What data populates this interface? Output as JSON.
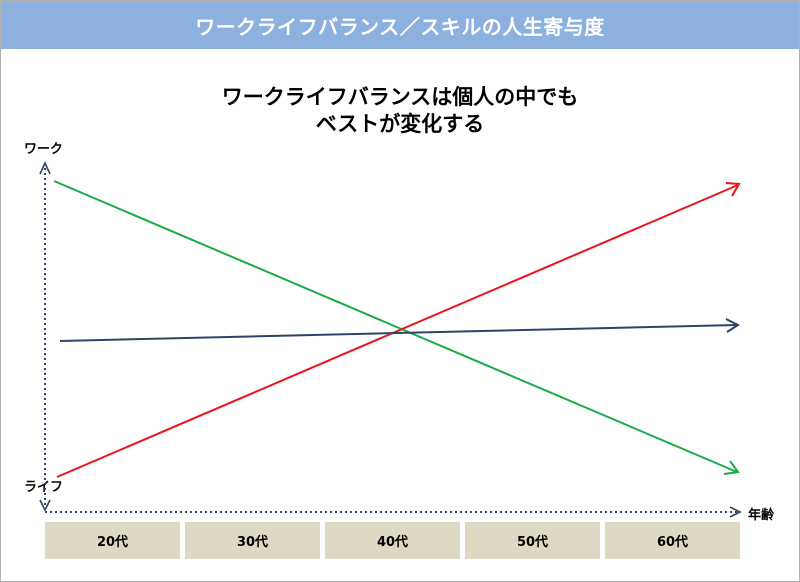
{
  "header": {
    "title": "ワークライフバランス／スキルの人生寄与度"
  },
  "diagram": {
    "title_line1": "ワークライフバランスは個人の中でも",
    "title_line2": "ベストが変化する",
    "y_axis_top_label": "ワーク",
    "y_axis_bottom_label": "ライフ",
    "x_axis_label": "年齢",
    "age_bands": [
      "20代",
      "30代",
      "40代",
      "50代",
      "60代"
    ],
    "colors": {
      "header_bg": "#8db1de",
      "work_line": "#1aab4a",
      "life_line": "#e8161c",
      "balance_line": "#2d4468",
      "axis": "#2d4468",
      "age_band_bg": "#ddd9c4"
    }
  }
}
